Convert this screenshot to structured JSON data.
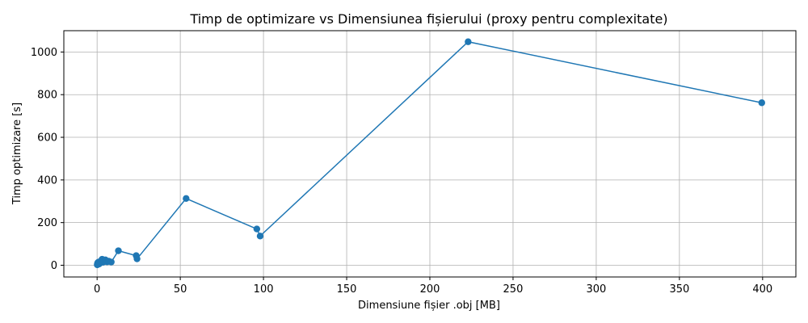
{
  "chart_data": {
    "type": "line",
    "title": "Timp de optimizare vs Dimensiunea fișierului (proxy pentru complexitate)",
    "xlabel": "Dimensiune fișier .obj [MB]",
    "ylabel": "Timp optimizare [s]",
    "xlim": [
      -20,
      420
    ],
    "ylim": [
      -55,
      1100
    ],
    "xticks": [
      0,
      50,
      100,
      150,
      200,
      250,
      300,
      350,
      400
    ],
    "yticks": [
      0,
      200,
      400,
      600,
      800,
      1000
    ],
    "grid": true,
    "line_color": "#1f77b4",
    "marker": "circle",
    "series": [
      {
        "x": [
          0.1,
          0.2,
          0.4,
          0.6,
          0.9,
          1.2,
          1.6,
          2.0,
          2.5,
          3.0,
          3.5,
          4.0,
          5.0,
          6.0,
          7.0,
          8.5,
          12.8,
          23.5,
          24.0,
          53.5,
          96.0,
          98.0,
          223.0,
          399.5
        ],
        "y": [
          2,
          8,
          12,
          5,
          15,
          6,
          10,
          18,
          22,
          28,
          14,
          20,
          25,
          16,
          19,
          15,
          68,
          45,
          30,
          313,
          170,
          137,
          1048,
          762
        ]
      }
    ]
  }
}
